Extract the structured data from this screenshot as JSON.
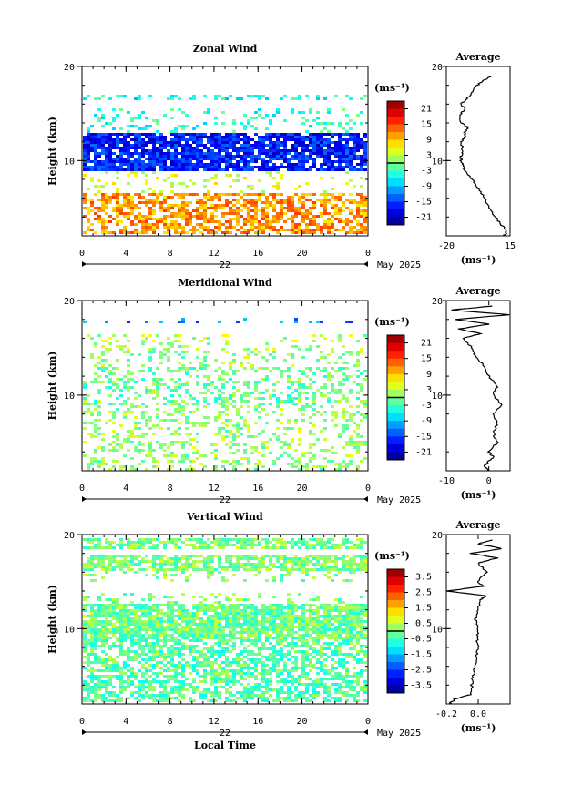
{
  "chart_data": [
    {
      "type": "heatmap",
      "title": "Zonal Wind",
      "ylabel": "Height (km)",
      "ylim": [
        2,
        20
      ],
      "y_ticks": [
        "20",
        "10"
      ],
      "xlim": [
        0,
        26
      ],
      "x_ticks": [
        "0",
        "4",
        "8",
        "12",
        "16",
        "20",
        "0"
      ],
      "date_label": "22",
      "month_label": "May 2025",
      "colorbar": {
        "unit": "(ms⁻¹)",
        "ticks": [
          "21",
          "15",
          "9",
          "3",
          "-3",
          "-9",
          "-15",
          "-21"
        ],
        "range": [
          -24,
          24
        ]
      },
      "bands": [
        {
          "from": 16.6,
          "to": 17.2,
          "value": -5,
          "density": 0.35
        },
        {
          "from": 13.2,
          "to": 15.8,
          "value": -4,
          "density": 0.18
        },
        {
          "from": 9.0,
          "to": 13.2,
          "value": -17,
          "density": 0.85
        },
        {
          "from": 6.8,
          "to": 9.0,
          "value": 4,
          "density": 0.15
        },
        {
          "from": 2.2,
          "to": 6.8,
          "value": 11,
          "density": 0.6
        }
      ],
      "profile": {
        "title": "Average",
        "xlim": [
          -20,
          15
        ],
        "x_ticks": [
          "-20",
          "15"
        ],
        "xlabel": "(ms⁻¹)",
        "heights": [
          2,
          2.5,
          3,
          3.5,
          4,
          5,
          6,
          7,
          8,
          9,
          9.5,
          10,
          10.5,
          11,
          12,
          12.5,
          13,
          13.5,
          14,
          15,
          15.5,
          16,
          16.5,
          17,
          18,
          18.5,
          19
        ],
        "values": [
          12,
          13,
          11,
          9,
          7,
          4,
          1,
          -2,
          -6,
          -10,
          -11,
          -12,
          -12,
          -11,
          -12,
          -10,
          -10,
          -8,
          -12,
          -12,
          -10,
          -12,
          -9,
          -7,
          -3,
          0,
          5
        ]
      }
    },
    {
      "type": "heatmap",
      "title": "Meridional Wind",
      "ylabel": "Height (km)",
      "ylim": [
        2,
        20
      ],
      "y_ticks": [
        "20",
        "10"
      ],
      "xlim": [
        0,
        26
      ],
      "x_ticks": [
        "0",
        "4",
        "8",
        "12",
        "16",
        "20",
        "0"
      ],
      "date_label": "22",
      "month_label": "May 2025",
      "colorbar": {
        "unit": "(ms⁻¹)",
        "ticks": [
          "21",
          "15",
          "9",
          "3",
          "-3",
          "-9",
          "-15",
          "-21"
        ],
        "range": [
          -24,
          24
        ]
      },
      "bands": [
        {
          "from": 17.6,
          "to": 18.4,
          "value": -12,
          "density": 0.12
        },
        {
          "from": 15.5,
          "to": 16.6,
          "value": 2,
          "density": 0.15
        },
        {
          "from": 13.0,
          "to": 15.5,
          "value": 1,
          "density": 0.2
        },
        {
          "from": 9.0,
          "to": 13.0,
          "value": -1,
          "density": 0.35
        },
        {
          "from": 2.2,
          "to": 9.0,
          "value": 1,
          "density": 0.28
        }
      ],
      "profile": {
        "title": "Average",
        "xlim": [
          -10,
          5
        ],
        "x_ticks": [
          "-10",
          "0"
        ],
        "xlabel": "(ms⁻¹)",
        "heights": [
          2,
          2.5,
          3,
          3.5,
          4,
          5,
          6,
          7,
          8,
          9,
          10,
          11,
          12,
          13,
          14,
          15,
          16,
          16.5,
          17,
          17.5,
          18,
          18.5,
          19,
          19.5
        ],
        "values": [
          0,
          -1,
          0,
          1,
          0,
          2,
          1,
          2,
          1,
          3,
          1,
          2,
          0,
          -1,
          -3,
          -4,
          -6,
          -2,
          -7,
          0,
          -8,
          5,
          -9,
          3
        ]
      }
    },
    {
      "type": "heatmap",
      "title": "Vertical Wind",
      "ylabel": "Height (km)",
      "xlabel": "Local Time",
      "ylim": [
        2,
        20
      ],
      "y_ticks": [
        "20",
        "10"
      ],
      "xlim": [
        0,
        26
      ],
      "x_ticks": [
        "0",
        "4",
        "8",
        "12",
        "16",
        "20",
        "0"
      ],
      "date_label": "22",
      "month_label": "May 2025",
      "colorbar": {
        "unit": "(ms⁻¹)",
        "ticks": [
          "3.5",
          "2.5",
          "1.5",
          "0.5",
          "-0.5",
          "-1.5",
          "-2.5",
          "-3.5"
        ],
        "range": [
          -4,
          4
        ]
      },
      "bands": [
        {
          "from": 18.6,
          "to": 19.8,
          "value": 0,
          "density": 0.7
        },
        {
          "from": 16.2,
          "to": 18.0,
          "value": 0,
          "density": 0.75
        },
        {
          "from": 15.0,
          "to": 16.2,
          "value": 0,
          "density": 0.2
        },
        {
          "from": 12.8,
          "to": 14.0,
          "value": 0,
          "density": 0.2
        },
        {
          "from": 9.0,
          "to": 12.8,
          "value": -0.1,
          "density": 0.85
        },
        {
          "from": 2.2,
          "to": 9.0,
          "value": -0.3,
          "density": 0.6
        }
      ],
      "profile": {
        "title": "Average",
        "xlim": [
          -0.2,
          0.2
        ],
        "x_ticks": [
          "-0.2",
          "0.0"
        ],
        "xlabel": "(ms⁻¹)",
        "heights": [
          2,
          2.5,
          3,
          4,
          5,
          6,
          7,
          8,
          9,
          10,
          11,
          12,
          13,
          13.5,
          14,
          14.5,
          15,
          16,
          17,
          17.5,
          18,
          18.5,
          19,
          19.5
        ],
        "values": [
          -0.18,
          -0.15,
          -0.05,
          -0.04,
          -0.03,
          -0.02,
          -0.01,
          0.0,
          -0.01,
          0.0,
          -0.02,
          0.0,
          0.01,
          0.05,
          -0.2,
          0.03,
          0.0,
          0.05,
          0.0,
          0.12,
          -0.05,
          0.15,
          0.0,
          0.1
        ]
      }
    }
  ]
}
